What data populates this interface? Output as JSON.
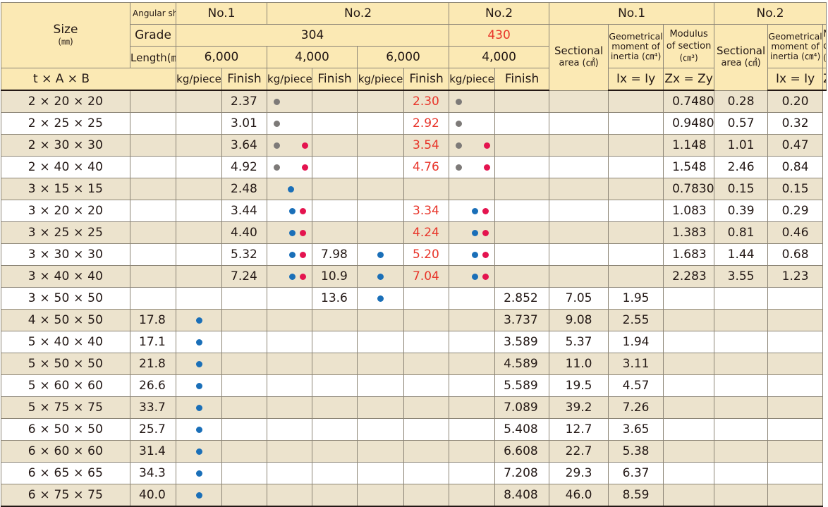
{
  "header": {
    "size_label": "Size",
    "size_unit": "(㎜)",
    "angular_shape_label": "Angular shape",
    "grade_label": "Grade",
    "length_label": "Length(㎜)",
    "dims_label": "t × A × B",
    "no1": "No.1",
    "no2": "No.2",
    "grade_304": "304",
    "grade_430": "430",
    "len_6000": "6,000",
    "len_4000": "4,000",
    "kg_piece": "kg/piece",
    "finish": "Finish",
    "sectional": "Sectional",
    "area_unit": "area (㎠)",
    "geo_line1": "Geometrical",
    "geo_line2": "moment of",
    "geo_line3": "inertia (㎝⁴)",
    "mod_line1": "Modulus",
    "mod_line2": "of section",
    "mod_line3": "(㎝³)",
    "ix_iy": "Ix = Iy",
    "zx_zy": "Zx = Zy"
  },
  "colors": {
    "header_bg": "#fbe9b4",
    "row_shade": "#ece3cd",
    "red_value": "#e8352a",
    "dot_gray": "#7d7a78",
    "dot_pink": "#e4144f",
    "dot_blue": "#1a6fb8"
  },
  "rows": [
    {
      "size": "2 × 20 × 20",
      "n1_kg": "",
      "n1_fin": [],
      "n2a_kg": "2.37",
      "n2a_fin": [
        "gray"
      ],
      "n2b_kg": "",
      "n2b_fin": [],
      "n3_kg": "2.30",
      "n3_fin": [
        "gray"
      ],
      "p1_area": "",
      "p1_ix": "",
      "p1_zx": "",
      "p2_area": "0.7480",
      "p2_ix": "0.28",
      "p2_zx": "0.20"
    },
    {
      "size": "2 × 25 × 25",
      "n1_kg": "",
      "n1_fin": [],
      "n2a_kg": "3.01",
      "n2a_fin": [
        "gray"
      ],
      "n2b_kg": "",
      "n2b_fin": [],
      "n3_kg": "2.92",
      "n3_fin": [
        "gray"
      ],
      "p1_area": "",
      "p1_ix": "",
      "p1_zx": "",
      "p2_area": "0.9480",
      "p2_ix": "0.57",
      "p2_zx": "0.32"
    },
    {
      "size": "2 × 30 × 30",
      "n1_kg": "",
      "n1_fin": [],
      "n2a_kg": "3.64",
      "n2a_fin": [
        "gray",
        "pink"
      ],
      "n2b_kg": "",
      "n2b_fin": [],
      "n3_kg": "3.54",
      "n3_fin": [
        "gray",
        "pink"
      ],
      "p1_area": "",
      "p1_ix": "",
      "p1_zx": "",
      "p2_area": "1.148",
      "p2_ix": "1.01",
      "p2_zx": "0.47"
    },
    {
      "size": "2 × 40 × 40",
      "n1_kg": "",
      "n1_fin": [],
      "n2a_kg": "4.92",
      "n2a_fin": [
        "gray",
        "pink"
      ],
      "n2b_kg": "",
      "n2b_fin": [],
      "n3_kg": "4.76",
      "n3_fin": [
        "gray",
        "pink"
      ],
      "p1_area": "",
      "p1_ix": "",
      "p1_zx": "",
      "p2_area": "1.548",
      "p2_ix": "2.46",
      "p2_zx": "0.84"
    },
    {
      "size": "3 × 15 × 15",
      "n1_kg": "",
      "n1_fin": [],
      "n2a_kg": "2.48",
      "n2a_fin": [
        "blue"
      ],
      "n2b_kg": "",
      "n2b_fin": [],
      "n3_kg": "",
      "n3_fin": [],
      "p1_area": "",
      "p1_ix": "",
      "p1_zx": "",
      "p2_area": "0.7830",
      "p2_ix": "0.15",
      "p2_zx": "0.15"
    },
    {
      "size": "3 × 20 × 20",
      "n1_kg": "",
      "n1_fin": [],
      "n2a_kg": "3.44",
      "n2a_fin": [
        "blue",
        "pink"
      ],
      "n2b_kg": "",
      "n2b_fin": [],
      "n3_kg": "3.34",
      "n3_fin": [
        "blue",
        "pink"
      ],
      "p1_area": "",
      "p1_ix": "",
      "p1_zx": "",
      "p2_area": "1.083",
      "p2_ix": "0.39",
      "p2_zx": "0.29"
    },
    {
      "size": "3 × 25 × 25",
      "n1_kg": "",
      "n1_fin": [],
      "n2a_kg": "4.40",
      "n2a_fin": [
        "blue",
        "pink"
      ],
      "n2b_kg": "",
      "n2b_fin": [],
      "n3_kg": "4.24",
      "n3_fin": [
        "blue",
        "pink"
      ],
      "p1_area": "",
      "p1_ix": "",
      "p1_zx": "",
      "p2_area": "1.383",
      "p2_ix": "0.81",
      "p2_zx": "0.46"
    },
    {
      "size": "3 × 30 × 30",
      "n1_kg": "",
      "n1_fin": [],
      "n2a_kg": "5.32",
      "n2a_fin": [
        "blue",
        "pink"
      ],
      "n2b_kg": "7.98",
      "n2b_fin": [
        "blue"
      ],
      "n3_kg": "5.20",
      "n3_fin": [
        "blue",
        "pink"
      ],
      "p1_area": "",
      "p1_ix": "",
      "p1_zx": "",
      "p2_area": "1.683",
      "p2_ix": "1.44",
      "p2_zx": "0.68"
    },
    {
      "size": "3 × 40 × 40",
      "n1_kg": "",
      "n1_fin": [],
      "n2a_kg": "7.24",
      "n2a_fin": [
        "blue",
        "pink"
      ],
      "n2b_kg": "10.9",
      "n2b_fin": [
        "blue"
      ],
      "n3_kg": "7.04",
      "n3_fin": [
        "blue",
        "pink"
      ],
      "p1_area": "",
      "p1_ix": "",
      "p1_zx": "",
      "p2_area": "2.283",
      "p2_ix": "3.55",
      "p2_zx": "1.23"
    },
    {
      "size": "3 × 50 × 50",
      "n1_kg": "",
      "n1_fin": [],
      "n2a_kg": "",
      "n2a_fin": [],
      "n2b_kg": "13.6",
      "n2b_fin": [
        "blue"
      ],
      "n3_kg": "",
      "n3_fin": [],
      "p1_area": "2.852",
      "p1_ix": "7.05",
      "p1_zx": "1.95",
      "p2_area": "",
      "p2_ix": "",
      "p2_zx": ""
    },
    {
      "size": "4 × 50 × 50",
      "n1_kg": "17.8",
      "n1_fin": [
        "blue"
      ],
      "n2a_kg": "",
      "n2a_fin": [],
      "n2b_kg": "",
      "n2b_fin": [],
      "n3_kg": "",
      "n3_fin": [],
      "p1_area": "3.737",
      "p1_ix": "9.08",
      "p1_zx": "2.55",
      "p2_area": "",
      "p2_ix": "",
      "p2_zx": ""
    },
    {
      "size": "5 × 40 × 40",
      "n1_kg": "17.1",
      "n1_fin": [
        "blue"
      ],
      "n2a_kg": "",
      "n2a_fin": [],
      "n2b_kg": "",
      "n2b_fin": [],
      "n3_kg": "",
      "n3_fin": [],
      "p1_area": "3.589",
      "p1_ix": "5.37",
      "p1_zx": "1.94",
      "p2_area": "",
      "p2_ix": "",
      "p2_zx": ""
    },
    {
      "size": "5 × 50 × 50",
      "n1_kg": "21.8",
      "n1_fin": [
        "blue"
      ],
      "n2a_kg": "",
      "n2a_fin": [],
      "n2b_kg": "",
      "n2b_fin": [],
      "n3_kg": "",
      "n3_fin": [],
      "p1_area": "4.589",
      "p1_ix": "11.0",
      "p1_zx": "3.11",
      "p2_area": "",
      "p2_ix": "",
      "p2_zx": ""
    },
    {
      "size": "5 × 60 × 60",
      "n1_kg": "26.6",
      "n1_fin": [
        "blue"
      ],
      "n2a_kg": "",
      "n2a_fin": [],
      "n2b_kg": "",
      "n2b_fin": [],
      "n3_kg": "",
      "n3_fin": [],
      "p1_area": "5.589",
      "p1_ix": "19.5",
      "p1_zx": "4.57",
      "p2_area": "",
      "p2_ix": "",
      "p2_zx": ""
    },
    {
      "size": "5 × 75 × 75",
      "n1_kg": "33.7",
      "n1_fin": [
        "blue"
      ],
      "n2a_kg": "",
      "n2a_fin": [],
      "n2b_kg": "",
      "n2b_fin": [],
      "n3_kg": "",
      "n3_fin": [],
      "p1_area": "7.089",
      "p1_ix": "39.2",
      "p1_zx": "7.26",
      "p2_area": "",
      "p2_ix": "",
      "p2_zx": ""
    },
    {
      "size": "6 × 50 × 50",
      "n1_kg": "25.7",
      "n1_fin": [
        "blue"
      ],
      "n2a_kg": "",
      "n2a_fin": [],
      "n2b_kg": "",
      "n2b_fin": [],
      "n3_kg": "",
      "n3_fin": [],
      "p1_area": "5.408",
      "p1_ix": "12.7",
      "p1_zx": "3.65",
      "p2_area": "",
      "p2_ix": "",
      "p2_zx": ""
    },
    {
      "size": "6 × 60 × 60",
      "n1_kg": "31.4",
      "n1_fin": [
        "blue"
      ],
      "n2a_kg": "",
      "n2a_fin": [],
      "n2b_kg": "",
      "n2b_fin": [],
      "n3_kg": "",
      "n3_fin": [],
      "p1_area": "6.608",
      "p1_ix": "22.7",
      "p1_zx": "5.38",
      "p2_area": "",
      "p2_ix": "",
      "p2_zx": ""
    },
    {
      "size": "6 × 65 × 65",
      "n1_kg": "34.3",
      "n1_fin": [
        "blue"
      ],
      "n2a_kg": "",
      "n2a_fin": [],
      "n2b_kg": "",
      "n2b_fin": [],
      "n3_kg": "",
      "n3_fin": [],
      "p1_area": "7.208",
      "p1_ix": "29.3",
      "p1_zx": "6.37",
      "p2_area": "",
      "p2_ix": "",
      "p2_zx": ""
    },
    {
      "size": "6 × 75 × 75",
      "n1_kg": "40.0",
      "n1_fin": [
        "blue"
      ],
      "n2a_kg": "",
      "n2a_fin": [],
      "n2b_kg": "",
      "n2b_fin": [],
      "n3_kg": "",
      "n3_fin": [],
      "p1_area": "8.408",
      "p1_ix": "46.0",
      "p1_zx": "8.59",
      "p2_area": "",
      "p2_ix": "",
      "p2_zx": ""
    }
  ]
}
